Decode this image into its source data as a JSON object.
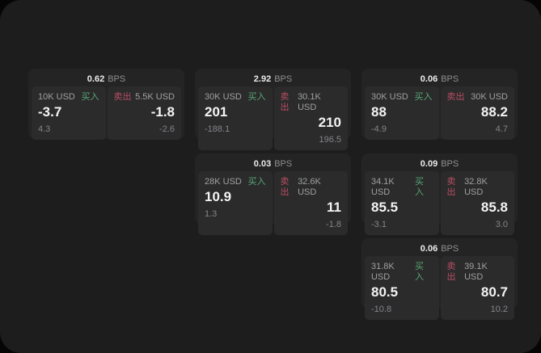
{
  "colors": {
    "page_bg": "#050505",
    "panel_bg": "#1d1d1d",
    "card_bg": "#242424",
    "cell_bg": "#2b2b2c",
    "price_text": "#f4f4f4",
    "label_text": "#a0a0a0",
    "delta_text": "#85858a",
    "buy_green": "#57a674",
    "sell_red": "#b74e62"
  },
  "labels": {
    "bps_unit": "BPS",
    "buy": "买入",
    "sell": "卖出"
  },
  "cards": [
    {
      "bps": "0.62",
      "buy": {
        "notional": "10K USD",
        "price": "-3.7",
        "delta": "4.3"
      },
      "sell": {
        "notional": "5.5K USD",
        "price": "-1.8",
        "delta": "-2.6"
      }
    },
    {
      "bps": "2.92",
      "buy": {
        "notional": "30K USD",
        "price": "201",
        "delta": "-188.1"
      },
      "sell": {
        "notional": "30.1K USD",
        "price": "210",
        "delta": "196.5"
      }
    },
    {
      "bps": "0.06",
      "buy": {
        "notional": "30K USD",
        "price": "88",
        "delta": "-4.9"
      },
      "sell": {
        "notional": "30K USD",
        "price": "88.2",
        "delta": "4.7"
      }
    },
    {
      "bps": "0.03",
      "buy": {
        "notional": "28K USD",
        "price": "10.9",
        "delta": "1.3"
      },
      "sell": {
        "notional": "32.6K USD",
        "price": "11",
        "delta": "-1.8"
      }
    },
    {
      "bps": "0.09",
      "buy": {
        "notional": "34.1K USD",
        "price": "85.5",
        "delta": "-3.1"
      },
      "sell": {
        "notional": "32.8K USD",
        "price": "85.8",
        "delta": "3.0"
      }
    },
    {
      "bps": "0.06",
      "buy": {
        "notional": "31.8K USD",
        "price": "80.5",
        "delta": "-10.8"
      },
      "sell": {
        "notional": "39.1K USD",
        "price": "80.7",
        "delta": "10.2"
      }
    }
  ]
}
